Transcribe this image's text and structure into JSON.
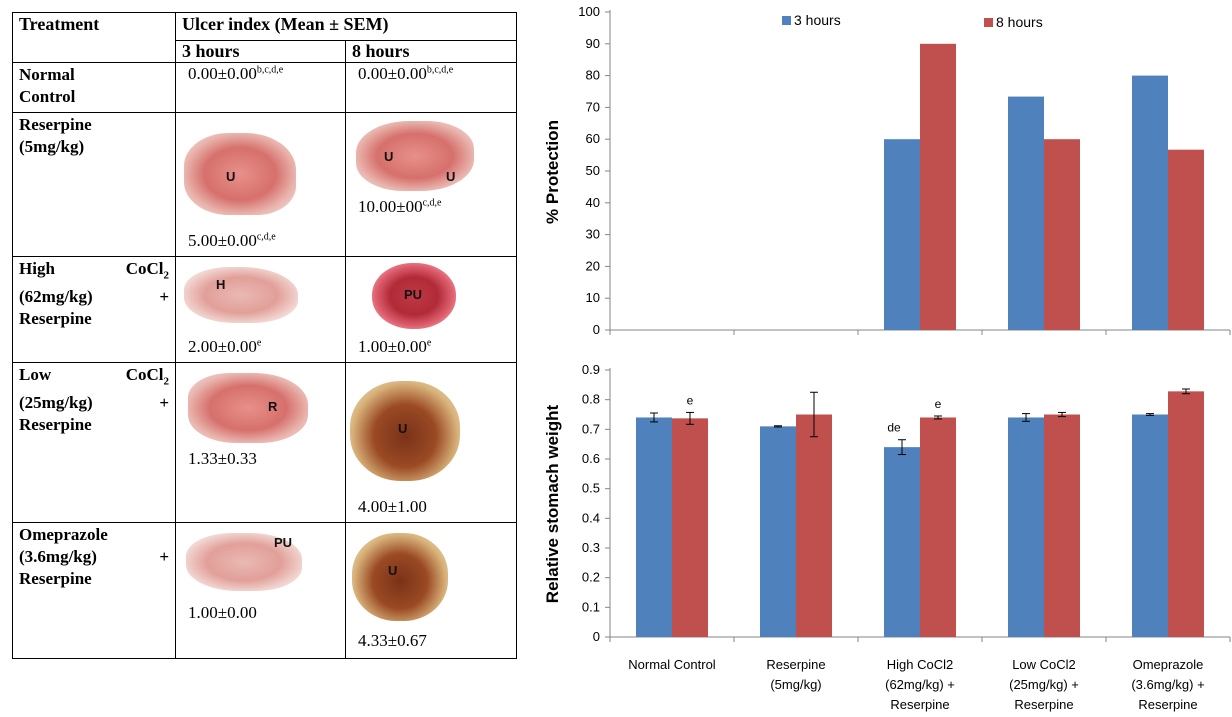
{
  "table": {
    "header": {
      "treatment": "Treatment",
      "ulcer_index": "Ulcer index (Mean ± SEM)",
      "col_3h": "3 hours",
      "col_8h": "8 hours"
    },
    "rows": [
      {
        "label_lines": [
          "Normal",
          "Control"
        ],
        "v3": "0.00±0.00",
        "s3": "b,c,d,e",
        "v8": "0.00±0.00",
        "s8": "b,c,d,e"
      },
      {
        "label_lines": [
          "Reserpine",
          "(5mg/kg)"
        ],
        "v3": "5.00±0.00",
        "s3": "c,d,e",
        "v8": "10.00±00",
        "s8": "c,d,e",
        "photo3_labels": [
          "U"
        ],
        "photo8_labels": [
          "U",
          "U"
        ]
      },
      {
        "label_a": "High",
        "label_b": "CoCl",
        "label_b_sub": "2",
        "label_c": "(62mg/kg)",
        "label_plus": "+",
        "label_d": "Reserpine",
        "v3": "2.00±0.00",
        "s3": "e",
        "v8": "1.00±0.00",
        "s8": "e",
        "photo3_labels": [
          "H"
        ],
        "photo8_labels": [
          "PU"
        ]
      },
      {
        "label_a": "Low",
        "label_b": "CoCl",
        "label_b_sub": "2",
        "label_c": "(25mg/kg)",
        "label_plus": "+",
        "label_d": "Reserpine",
        "v3": "1.33±0.33",
        "v8": "4.00±1.00",
        "photo3_labels": [
          "R"
        ],
        "photo8_labels": [
          "U"
        ]
      },
      {
        "label_a": "Omeprazole",
        "label_c": "(3.6mg/kg)",
        "label_plus": "+",
        "label_d": "Reserpine",
        "v3": "1.00±0.00",
        "v8": "4.33±0.67",
        "photo3_labels": [
          "PU"
        ],
        "photo8_labels": [
          "U"
        ]
      }
    ]
  },
  "chart_data": [
    {
      "type": "bar",
      "ylabel": "% Protection",
      "ylim": [
        0,
        100
      ],
      "yticks": [
        0,
        10,
        20,
        30,
        40,
        50,
        60,
        70,
        80,
        90,
        100
      ],
      "grid": false,
      "legend_position": "top",
      "categories": [
        "Normal Control",
        "Reserpine (5mg/kg)",
        "High CoCl2 (62mg/kg) + Reserpine",
        "Low CoCl2 (25mg/kg) + Reserpine",
        "Omeprazole (3.6mg/kg) + Reserpine"
      ],
      "series": [
        {
          "name": "3 hours",
          "color": "#4f81bd",
          "values": [
            0,
            0,
            60,
            73.4,
            80
          ]
        },
        {
          "name": "8 hours",
          "color": "#c0504d",
          "values": [
            0,
            0,
            90,
            60,
            56.7
          ]
        }
      ]
    },
    {
      "type": "bar",
      "ylabel": "Relative stomach weight",
      "ylim": [
        0,
        0.9
      ],
      "yticks": [
        "0",
        "0.1",
        "0.2",
        "0.3",
        "0.4",
        "0.5",
        "0.6",
        "0.7",
        "0.8",
        "0.9"
      ],
      "grid": false,
      "category_label_lines": [
        [
          "Normal Control"
        ],
        [
          "Reserpine",
          "(5mg/kg)"
        ],
        [
          "High CoCl2",
          "(62mg/kg) +",
          "Reserpine"
        ],
        [
          "Low CoCl2",
          "(25mg/kg) +",
          "Reserpine"
        ],
        [
          "Omeprazole",
          "(3.6mg/kg) +",
          "Reserpine"
        ]
      ],
      "series": [
        {
          "name": "3 hours",
          "color": "#4f81bd",
          "values": [
            0.74,
            0.71,
            0.64,
            0.74,
            0.75
          ],
          "errors": [
            0.015,
            0.002,
            0.025,
            0.013,
            0.003
          ]
        },
        {
          "name": "8 hours",
          "color": "#c0504d",
          "values": [
            0.737,
            0.75,
            0.74,
            0.75,
            0.828
          ],
          "errors": [
            0.02,
            0.075,
            0.005,
            0.007,
            0.008
          ]
        }
      ],
      "annotations": [
        {
          "series": 1,
          "category": 0,
          "text": "e"
        },
        {
          "series": 0,
          "category": 2,
          "text": "de"
        },
        {
          "series": 1,
          "category": 2,
          "text": "e"
        }
      ]
    }
  ]
}
